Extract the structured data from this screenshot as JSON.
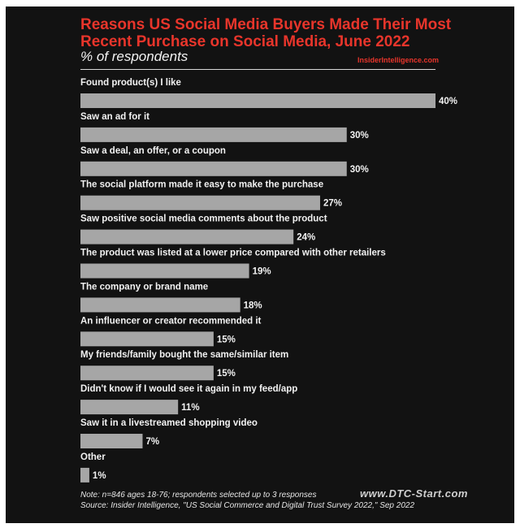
{
  "header": {
    "title": "Reasons US Social Media Buyers Made Their Most Recent Purchase on Social Media, June 2022",
    "subtitle": "% of respondents",
    "source_brand": "InsiderIntelligence.com"
  },
  "footer": {
    "note": "Note: n=846 ages 18-76; respondents selected up to 3 responses",
    "source": "Source: Insider Intelligence, \"US Social Commerce and Digital Trust Survey 2022,\" Sep 2022",
    "watermark": "www.DTC-Start.com"
  },
  "colors": {
    "background": "#121212",
    "bar": "#a6a6a6",
    "title": "#e8352b",
    "text": "#f2f2f2"
  },
  "chart_data": {
    "type": "bar",
    "orientation": "horizontal",
    "title": "Reasons US Social Media Buyers Made Their Most Recent Purchase on Social Media, June 2022",
    "subtitle": "% of respondents",
    "xlim": [
      0,
      40
    ],
    "grid": false,
    "categories": [
      "Found product(s) I like",
      "Saw an ad for it",
      "Saw a deal, an offer, or a coupon",
      "The social platform made it easy to make the purchase",
      "Saw positive social media comments about the product",
      "The product was listed at a lower price compared with other retailers",
      "The company or brand name",
      "An influencer or creator recommended it",
      "My friends/family bought the same/similar item",
      "Didn't know if I would see it again in my feed/app",
      "Saw it in a livestreamed shopping video",
      "Other"
    ],
    "values": [
      40,
      30,
      30,
      27,
      24,
      19,
      18,
      15,
      15,
      11,
      7,
      1
    ],
    "value_labels": [
      "40%",
      "30%",
      "30%",
      "27%",
      "24%",
      "19%",
      "18%",
      "15%",
      "15%",
      "11%",
      "7%",
      "1%"
    ]
  }
}
